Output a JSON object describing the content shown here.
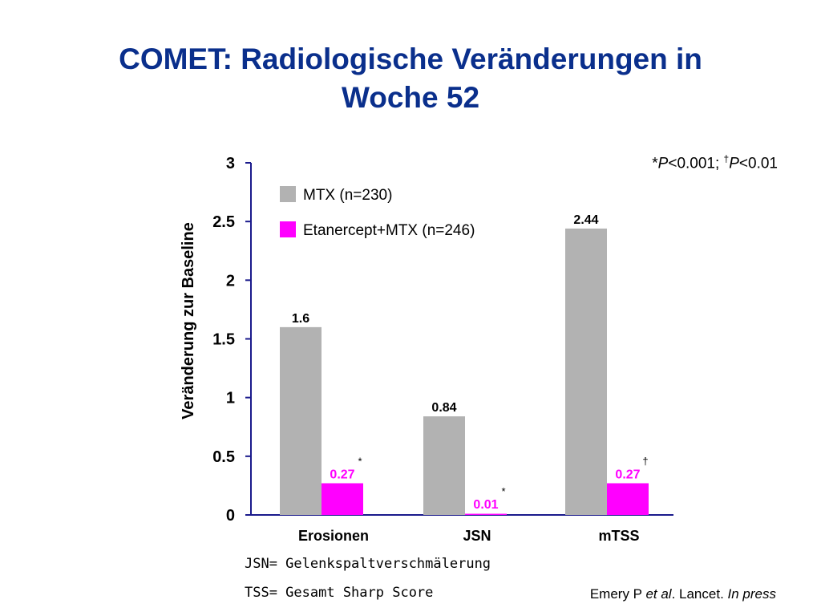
{
  "title_line1": "COMET: Radiologische Veränderungen in",
  "title_line2": "Woche 52",
  "significance_note": {
    "star": "*",
    "p1": "P",
    "t1": "<0.001; ",
    "dagger": "†",
    "p2": "P",
    "t2": "<0.01"
  },
  "footnotes": [
    "JSN= Gelenkspaltverschmälerung",
    "TSS= Gesamt Sharp Score"
  ],
  "citation": {
    "author": "Emery P ",
    "etal": "et al",
    "journal": ". Lancet. ",
    "status": "In press"
  },
  "chart_data": {
    "type": "bar",
    "categories": [
      "Erosionen",
      "JSN",
      "mTSS"
    ],
    "series": [
      {
        "name": "MTX (n=230)",
        "values": [
          1.6,
          0.84,
          2.44
        ],
        "labels": [
          "1.6",
          "0.84",
          "2.44"
        ],
        "color": "#b2b2b2",
        "label_color": "#000000",
        "marks": [
          "",
          "",
          ""
        ]
      },
      {
        "name": "Etanercept+MTX (n=246)",
        "values": [
          0.27,
          0.01,
          0.27
        ],
        "labels": [
          "0.27",
          "0.01",
          "0.27"
        ],
        "color": "#ff00ff",
        "label_color": "#ff00ff",
        "marks": [
          "*",
          "*",
          "†"
        ]
      }
    ],
    "ylabel": "Veränderung zur Baseline",
    "ylim": [
      0,
      3
    ],
    "yticks": [
      "0",
      "0.5",
      "1",
      "1.5",
      "2",
      "2.5",
      "3"
    ],
    "axis_color": "#1a1a8c",
    "grid": false,
    "legend": "top-left"
  }
}
